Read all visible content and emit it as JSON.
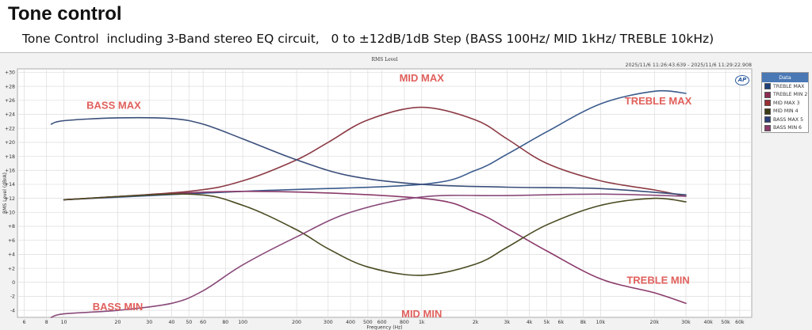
{
  "page": {
    "title": "Tone control",
    "subtitle": "Tone Control  including 3-Band stereo EQ circuit,   0 to ±12dB/1dB Step (BASS 100Hz/ MID 1kHz/ TREBLE 10kHz)"
  },
  "meta": {
    "plot_title": "RMS Level",
    "timestamp": "2025/11/6 11:26:43.639 - 2025/11/6 11:29:22.908",
    "logo": "AP"
  },
  "legend": {
    "title": "Data",
    "items": [
      {
        "label": "TREBLE MAX",
        "color": "#1f3f7a"
      },
      {
        "label": "TREBLE MIN  2",
        "color": "#8c2a4f"
      },
      {
        "label": "MID MAX  3",
        "color": "#9a2f33"
      },
      {
        "label": "MID MIN  4",
        "color": "#3c3c14"
      },
      {
        "label": "BASS MAX  5",
        "color": "#2a3f7a"
      },
      {
        "label": "BASS MIN  6",
        "color": "#8a3a6a"
      }
    ]
  },
  "chart_data": {
    "type": "line",
    "title": "RMS Level",
    "xlabel": "Frequency (Hz)",
    "ylabel": "RMS Level (dBrA)",
    "x_scale": "log",
    "xlim": [
      5.5,
      70000
    ],
    "ylim": [
      -5,
      30.5
    ],
    "grid": true,
    "legend_position": "right",
    "x_ticks": [
      {
        "v": 6,
        "l": "6"
      },
      {
        "v": 8,
        "l": "8"
      },
      {
        "v": 10,
        "l": "10"
      },
      {
        "v": 20,
        "l": "20"
      },
      {
        "v": 30,
        "l": "30"
      },
      {
        "v": 40,
        "l": "40"
      },
      {
        "v": 50,
        "l": "50"
      },
      {
        "v": 60,
        "l": "60"
      },
      {
        "v": 80,
        "l": "80"
      },
      {
        "v": 100,
        "l": "100"
      },
      {
        "v": 200,
        "l": "200"
      },
      {
        "v": 300,
        "l": "300"
      },
      {
        "v": 400,
        "l": "400"
      },
      {
        "v": 500,
        "l": "500"
      },
      {
        "v": 600,
        "l": "600"
      },
      {
        "v": 800,
        "l": "800"
      },
      {
        "v": 1000,
        "l": "1k"
      },
      {
        "v": 2000,
        "l": "2k"
      },
      {
        "v": 3000,
        "l": "3k"
      },
      {
        "v": 4000,
        "l": "4k"
      },
      {
        "v": 5000,
        "l": "5k"
      },
      {
        "v": 6000,
        "l": "6k"
      },
      {
        "v": 8000,
        "l": "8k"
      },
      {
        "v": 10000,
        "l": "10k"
      },
      {
        "v": 20000,
        "l": "20k"
      },
      {
        "v": 30000,
        "l": "30k"
      },
      {
        "v": 40000,
        "l": "40k"
      },
      {
        "v": 50000,
        "l": "50k"
      },
      {
        "v": 60000,
        "l": "60k"
      }
    ],
    "y_ticks": [
      {
        "v": 30,
        "l": "+30"
      },
      {
        "v": 28,
        "l": "+28"
      },
      {
        "v": 26,
        "l": "+26"
      },
      {
        "v": 24,
        "l": "+24"
      },
      {
        "v": 22,
        "l": "+22"
      },
      {
        "v": 20,
        "l": "+20"
      },
      {
        "v": 18,
        "l": "+18"
      },
      {
        "v": 16,
        "l": "+16"
      },
      {
        "v": 14,
        "l": "+14"
      },
      {
        "v": 12,
        "l": "+12"
      },
      {
        "v": 10,
        "l": "+10"
      },
      {
        "v": 8,
        "l": "+8"
      },
      {
        "v": 6,
        "l": "+6"
      },
      {
        "v": 4,
        "l": "+4"
      },
      {
        "v": 2,
        "l": "+2"
      },
      {
        "v": 0,
        "l": "0"
      },
      {
        "v": -2,
        "l": "-2"
      },
      {
        "v": -4,
        "l": "-4"
      }
    ],
    "series": [
      {
        "name": "TREBLE MAX",
        "color": "#3a5a8c",
        "x": [
          10,
          100,
          1000,
          2000,
          3000,
          5000,
          10000,
          20000,
          30000
        ],
        "y": [
          11.8,
          13,
          14,
          16,
          18.3,
          21.5,
          25.5,
          27.3,
          27
        ]
      },
      {
        "name": "TREBLE MIN  2",
        "color": "#8a3a6a",
        "x": [
          10,
          100,
          1000,
          2000,
          3000,
          5000,
          10000,
          20000,
          30000
        ],
        "y": [
          11.8,
          13,
          12,
          10,
          7.7,
          4.5,
          0.5,
          -1.5,
          -3
        ]
      },
      {
        "name": "MID MAX  3",
        "color": "#8c3a44",
        "x": [
          10,
          50,
          100,
          200,
          300,
          500,
          1000,
          2000,
          3000,
          5000,
          10000,
          20000,
          30000
        ],
        "y": [
          11.8,
          13,
          14.5,
          17.5,
          20,
          23.2,
          25,
          23.2,
          20.5,
          17,
          14.5,
          13.2,
          12.3
        ]
      },
      {
        "name": "MID MIN  4",
        "color": "#4a4a22",
        "x": [
          10,
          50,
          100,
          200,
          300,
          500,
          1000,
          2000,
          3000,
          5000,
          10000,
          20000,
          30000
        ],
        "y": [
          11.8,
          12.6,
          11,
          7.5,
          4.8,
          2.2,
          1,
          2.6,
          5,
          8.2,
          11,
          12,
          11.5
        ]
      },
      {
        "name": "BASS MAX  5",
        "color": "#3a4e7a",
        "x": [
          8.5,
          10,
          20,
          40,
          60,
          100,
          200,
          400,
          1000,
          3000,
          10000,
          30000
        ],
        "y": [
          22.6,
          23.1,
          23.5,
          23.4,
          22.6,
          20.5,
          17.5,
          15.2,
          14,
          13.6,
          13.4,
          12.5
        ]
      },
      {
        "name": "BASS MIN  6",
        "color": "#8a4a7a",
        "x": [
          8.5,
          10,
          20,
          40,
          60,
          100,
          200,
          400,
          1000,
          3000,
          10000,
          30000
        ],
        "y": [
          -5,
          -4.5,
          -4,
          -3,
          -1.2,
          2.5,
          6.5,
          10,
          12.2,
          12.4,
          12.6,
          12.3
        ]
      }
    ],
    "annotations": [
      {
        "text": "BASS  MAX",
        "x": 19,
        "y": 24.8
      },
      {
        "text": "MID  MAX",
        "x": 1000,
        "y": 28.7
      },
      {
        "text": "TREBLE MAX",
        "x": 21000,
        "y": 25.4
      },
      {
        "text": "BASS  MIN",
        "x": 20,
        "y": -4
      },
      {
        "text": "MID MIN",
        "x": 1000,
        "y": -5
      },
      {
        "text": "TREBLE MIN",
        "x": 21000,
        "y": -0.2
      }
    ]
  }
}
